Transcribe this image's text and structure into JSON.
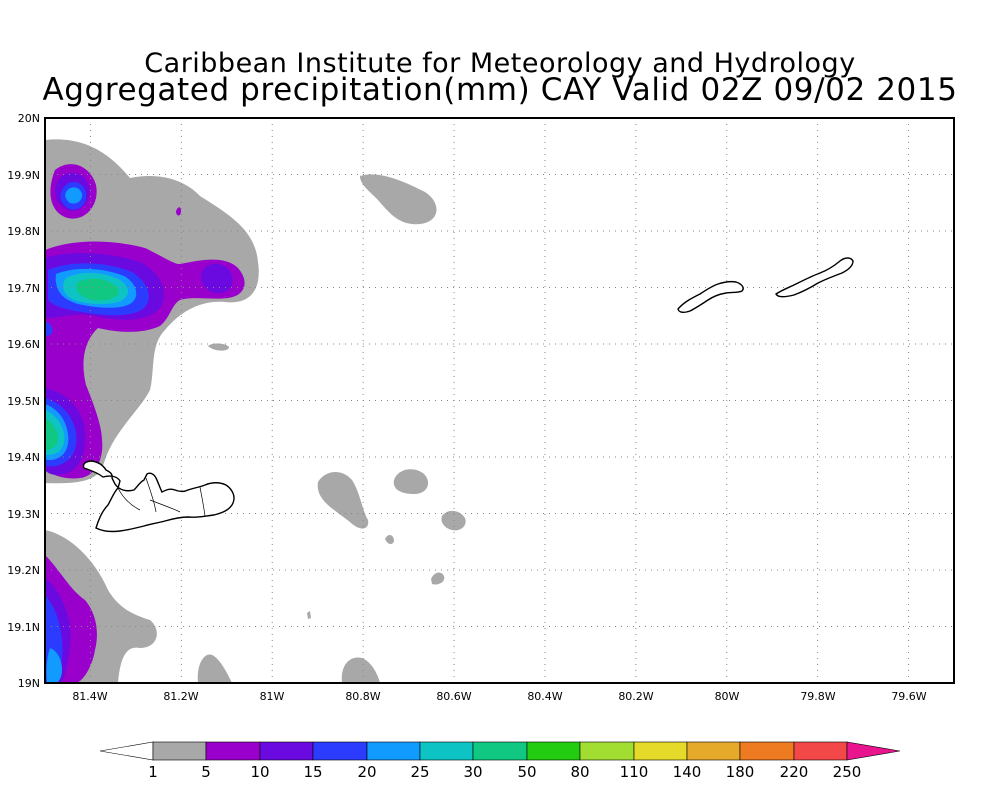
{
  "title": "Caribbean Institute for Meteorology and Hydrology",
  "subtitle": "Aggregated precipitation(mm) CAY Valid 02Z 09/02 2015",
  "map": {
    "lat_labels": [
      "19N",
      "19.1N",
      "19.2N",
      "19.3N",
      "19.4N",
      "19.5N",
      "19.6N",
      "19.7N",
      "19.8N",
      "19.9N",
      "20N"
    ],
    "lon_labels": [
      "81.4W",
      "81.2W",
      "81W",
      "80.8W",
      "80.6W",
      "80.4W",
      "80.2W",
      "80W",
      "79.8W",
      "79.6W"
    ],
    "lat_range": [
      19.0,
      20.0
    ],
    "lon_range": [
      -81.5,
      -79.5
    ],
    "gridlines": true,
    "islands": [
      "Grand Cayman",
      "Little Cayman",
      "Cayman Brac"
    ]
  },
  "legend": {
    "labels": [
      "1",
      "5",
      "10",
      "15",
      "20",
      "25",
      "30",
      "50",
      "80",
      "110",
      "140",
      "180",
      "220",
      "250"
    ],
    "colors": [
      "#ffffff",
      "#a8a8a8",
      "#9a00cc",
      "#6a0ae0",
      "#2b3cff",
      "#119bff",
      "#0ec3c3",
      "#10c882",
      "#22cc11",
      "#a2de31",
      "#e5d92a",
      "#e5aa2a",
      "#ee7a22",
      "#f24848",
      "#e8158e"
    ],
    "unit": "mm"
  },
  "colors": {
    "gray": "#a8a8a8",
    "purple": "#9a00cc",
    "violet": "#6a0ae0",
    "blue": "#2b3cff",
    "light_blue": "#119bff",
    "cyan": "#0ec3c3",
    "green": "#10c882"
  }
}
